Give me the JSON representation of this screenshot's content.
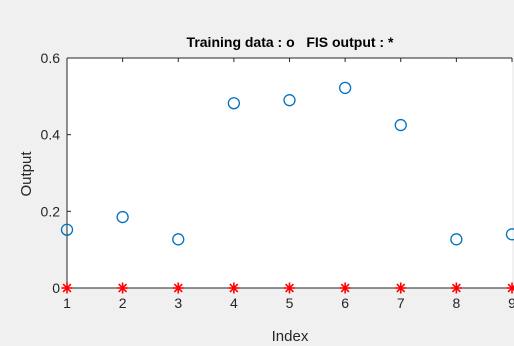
{
  "chart_data": {
    "type": "scatter",
    "title": "Training data : o   FIS output : *",
    "xlabel": "Index",
    "ylabel": "Output",
    "xlim": [
      1,
      9
    ],
    "ylim": [
      0,
      0.6
    ],
    "xticks": [
      "1",
      "2",
      "3",
      "4",
      "5",
      "6",
      "7",
      "8",
      "9"
    ],
    "yticks": [
      "0",
      "0.2",
      "0.4",
      "0.6"
    ],
    "grid": false,
    "series": [
      {
        "marker": "circle",
        "color": "#0072bd",
        "x": [
          1,
          2,
          3,
          4,
          5,
          6,
          7,
          8,
          9
        ],
        "y": [
          0.152,
          0.185,
          0.127,
          0.482,
          0.49,
          0.522,
          0.425,
          0.127,
          0.14
        ]
      },
      {
        "marker": "asterisk",
        "color": "#ff0000",
        "x": [
          1,
          2,
          3,
          4,
          5,
          6,
          7,
          8,
          9
        ],
        "y": [
          0,
          0,
          0,
          0,
          0,
          0,
          0,
          0,
          0
        ]
      }
    ]
  }
}
